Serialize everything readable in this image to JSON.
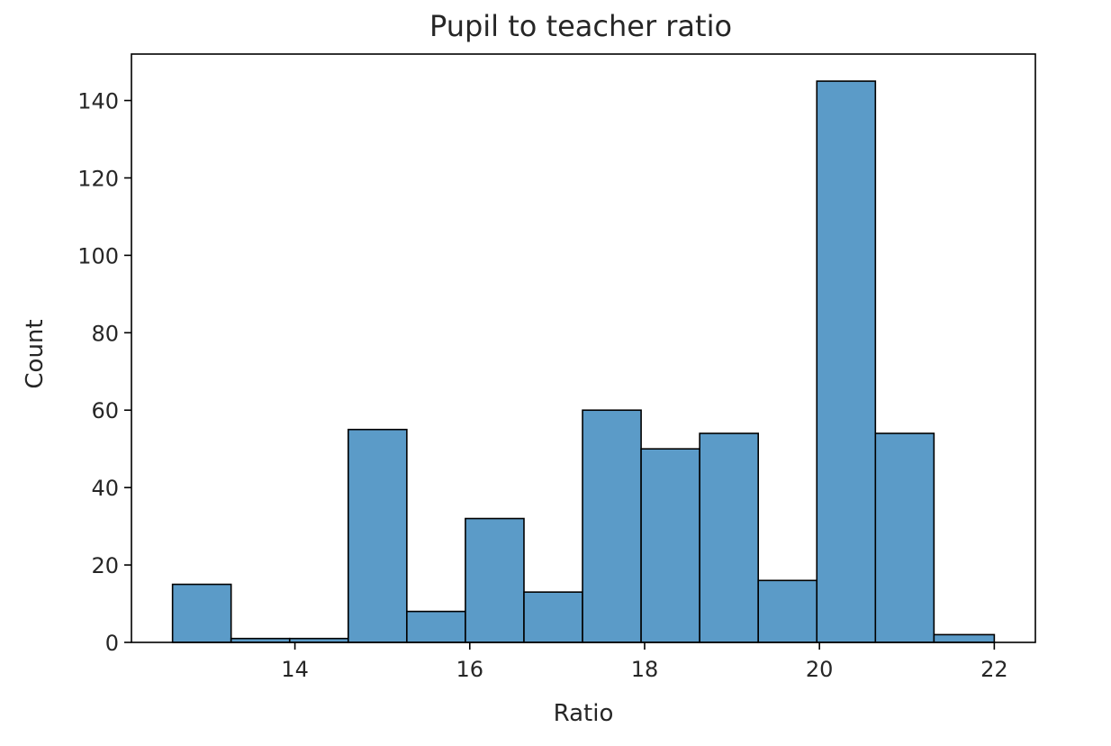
{
  "chart_data": {
    "type": "bar",
    "subtype": "histogram",
    "title": "Pupil to teacher ratio",
    "xlabel": "Ratio",
    "ylabel": "Count",
    "xlim": [
      12.13,
      22.47
    ],
    "ylim": [
      0,
      152
    ],
    "xticks": [
      14,
      16,
      18,
      20,
      22
    ],
    "yticks": [
      0,
      20,
      40,
      60,
      80,
      100,
      120,
      140
    ],
    "bar_color": "#5b9bc8",
    "edge_color": "#000000",
    "grid": false,
    "legend": "none",
    "bins": [
      {
        "x0": 12.6,
        "x1": 13.27,
        "count": 15
      },
      {
        "x0": 13.27,
        "x1": 13.94,
        "count": 1
      },
      {
        "x0": 13.94,
        "x1": 14.61,
        "count": 1
      },
      {
        "x0": 14.61,
        "x1": 15.28,
        "count": 55
      },
      {
        "x0": 15.28,
        "x1": 15.95,
        "count": 8
      },
      {
        "x0": 15.95,
        "x1": 16.62,
        "count": 32
      },
      {
        "x0": 16.62,
        "x1": 17.29,
        "count": 13
      },
      {
        "x0": 17.29,
        "x1": 17.96,
        "count": 60
      },
      {
        "x0": 17.96,
        "x1": 18.63,
        "count": 50
      },
      {
        "x0": 18.63,
        "x1": 19.3,
        "count": 54
      },
      {
        "x0": 19.3,
        "x1": 19.97,
        "count": 16
      },
      {
        "x0": 19.97,
        "x1": 20.64,
        "count": 145
      },
      {
        "x0": 20.64,
        "x1": 21.31,
        "count": 54
      },
      {
        "x0": 21.31,
        "x1": 22.0,
        "count": 2
      }
    ]
  }
}
